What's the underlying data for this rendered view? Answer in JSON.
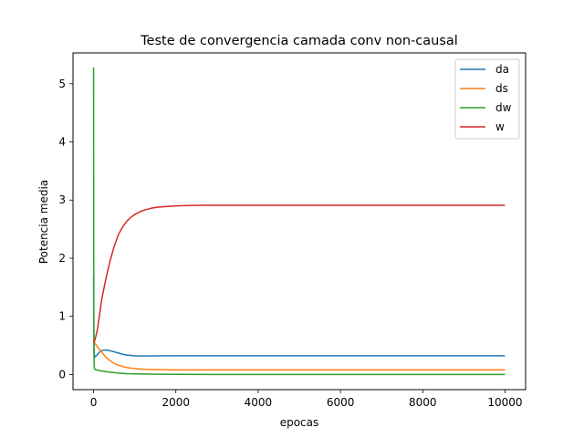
{
  "chart_data": {
    "type": "line",
    "title": "Teste de convergencia camada conv non-causal",
    "xlabel": "epocas",
    "ylabel": "Potencia media",
    "xlim": [
      -500,
      10500
    ],
    "ylim": [
      -0.26,
      5.53
    ],
    "xticks": [
      0,
      2000,
      4000,
      6000,
      8000,
      10000
    ],
    "xtick_labels": [
      "0",
      "2000",
      "4000",
      "6000",
      "8000",
      "10000"
    ],
    "yticks": [
      0,
      1,
      2,
      3,
      4,
      5
    ],
    "ytick_labels": [
      "0",
      "1",
      "2",
      "3",
      "4",
      "5"
    ],
    "grid": false,
    "legend_position": "top-right",
    "series": [
      {
        "name": "da",
        "color": "#1f77b4",
        "x": [
          0,
          5,
          15,
          30,
          60,
          100,
          150,
          200,
          250,
          300,
          400,
          500,
          600,
          700,
          800,
          1000,
          1200,
          1500,
          2000,
          3000,
          4000,
          5000,
          6000,
          7000,
          8000,
          9000,
          10000
        ],
        "y": [
          1.7,
          0.8,
          0.35,
          0.3,
          0.32,
          0.35,
          0.39,
          0.41,
          0.42,
          0.42,
          0.41,
          0.39,
          0.37,
          0.35,
          0.335,
          0.32,
          0.318,
          0.32,
          0.322,
          0.323,
          0.323,
          0.323,
          0.323,
          0.323,
          0.323,
          0.323,
          0.323
        ]
      },
      {
        "name": "ds",
        "color": "#ff7f0e",
        "x": [
          0,
          50,
          100,
          200,
          300,
          400,
          500,
          600,
          800,
          1000,
          1200,
          1500,
          2000,
          3000,
          4000,
          5000,
          6000,
          7000,
          8000,
          9000,
          10000
        ],
        "y": [
          0.58,
          0.52,
          0.47,
          0.38,
          0.3,
          0.24,
          0.19,
          0.16,
          0.12,
          0.1,
          0.09,
          0.085,
          0.08,
          0.08,
          0.08,
          0.08,
          0.08,
          0.08,
          0.08,
          0.08,
          0.08
        ]
      },
      {
        "name": "dw",
        "color": "#2ca02c",
        "x": [
          0,
          1,
          3,
          6,
          10,
          20,
          40,
          100,
          200,
          300,
          400,
          600,
          800,
          1000,
          1500,
          2000,
          3000,
          4000,
          5000,
          6000,
          7000,
          8000,
          9000,
          10000
        ],
        "y": [
          5.28,
          5.0,
          3.0,
          1.0,
          0.3,
          0.1,
          0.085,
          0.075,
          0.06,
          0.05,
          0.04,
          0.025,
          0.015,
          0.01,
          0.005,
          0.003,
          0.0,
          0.0,
          0.0,
          0.0,
          0.0,
          0.0,
          0.0,
          0.0
        ]
      },
      {
        "name": "w",
        "color": "#d62728",
        "x": [
          0,
          25,
          50,
          100,
          150,
          200,
          300,
          400,
          500,
          600,
          700,
          800,
          900,
          1000,
          1100,
          1200,
          1400,
          1600,
          1800,
          2000,
          2500,
          3000,
          4000,
          5000,
          6000,
          7000,
          8000,
          9000,
          10000
        ],
        "y": [
          0.55,
          0.58,
          0.64,
          0.8,
          1.05,
          1.3,
          1.65,
          1.95,
          2.2,
          2.4,
          2.53,
          2.63,
          2.7,
          2.75,
          2.79,
          2.82,
          2.86,
          2.88,
          2.89,
          2.9,
          2.91,
          2.91,
          2.91,
          2.91,
          2.91,
          2.91,
          2.91,
          2.91,
          2.91
        ]
      }
    ]
  }
}
